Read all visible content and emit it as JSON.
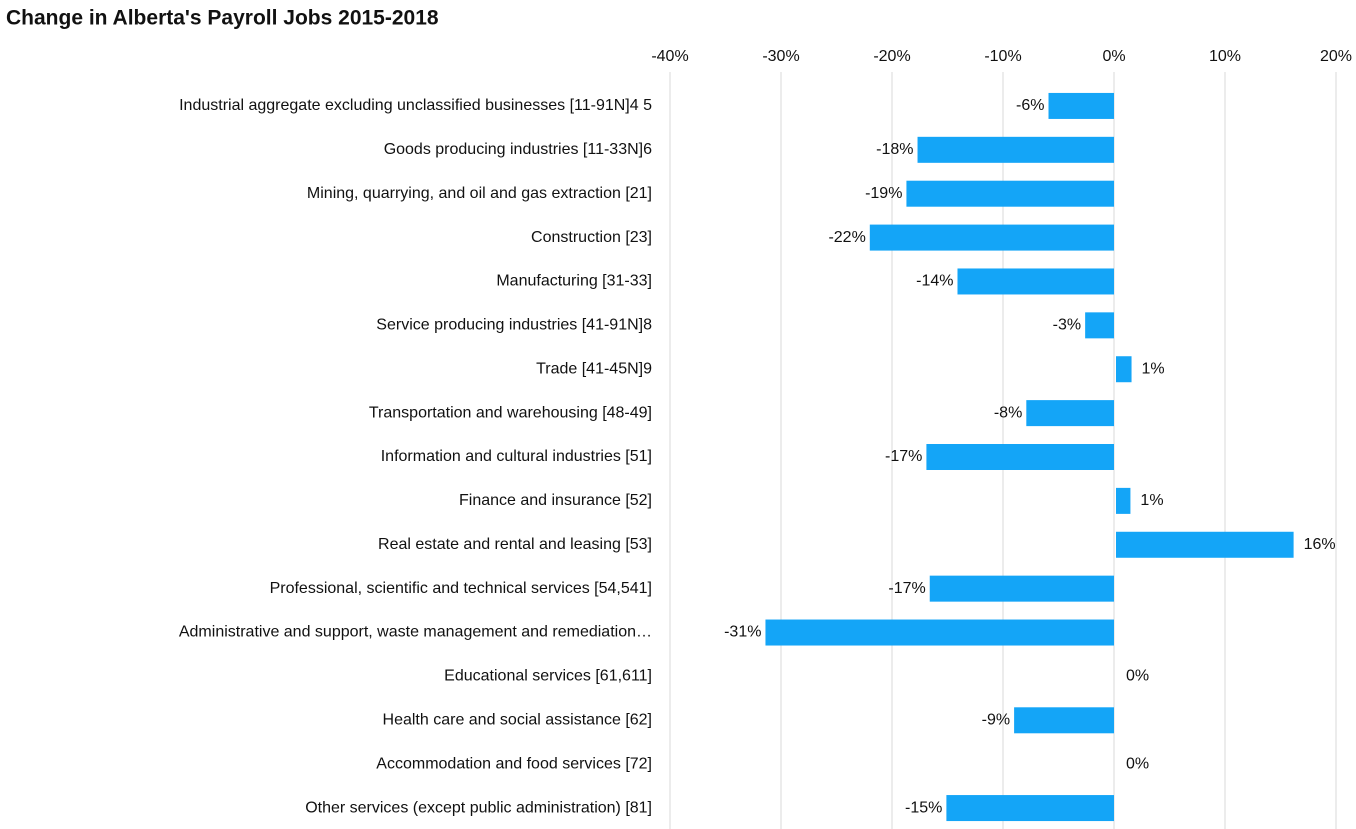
{
  "chart_data": {
    "type": "barh",
    "title": "Change in Alberta's Payroll Jobs 2015-2018",
    "categories": [
      "Industrial aggregate excluding unclassified businesses [11-91N]4 5",
      "Goods producing industries [11-33N]6",
      "Mining, quarrying, and oil and gas extraction [21]",
      "Construction [23]",
      "Manufacturing [31-33]",
      "Service producing industries [41-91N]8",
      "Trade [41-45N]9",
      "Transportation and warehousing [48-49]",
      "Information and cultural industries [51]",
      "Finance and insurance [52]",
      "Real estate and rental and leasing [53]",
      "Professional, scientific and technical services [54,541]",
      "Administrative and support, waste management and remediation…",
      "Educational services [61,611]",
      "Health care and social assistance [62]",
      "Accommodation and food services [72]",
      "Other services (except public administration) [81]"
    ],
    "values": [
      -5.9,
      -17.7,
      -18.7,
      -22.0,
      -14.1,
      -2.6,
      1.4,
      -7.9,
      -16.9,
      1.3,
      16.0,
      -16.6,
      -31.4,
      0,
      -9.0,
      0,
      -15.1
    ],
    "value_labels": [
      "-6%",
      "-18%",
      "-19%",
      "-22%",
      "-14%",
      "-3%",
      "1%",
      "-8%",
      "-17%",
      "1%",
      "16%",
      "-17%",
      "-31%",
      "0%",
      "-9%",
      "0%",
      "-15%"
    ],
    "color": "#14a5f7",
    "xlim": [
      -40,
      20
    ],
    "xticks": [
      {
        "value": -40,
        "label": "-40%"
      },
      {
        "value": -30,
        "label": "-30%"
      },
      {
        "value": -20,
        "label": "-20%"
      },
      {
        "value": -10,
        "label": "-10%"
      },
      {
        "value": 0,
        "label": "0%"
      },
      {
        "value": 10,
        "label": "10%"
      },
      {
        "value": 20,
        "label": "20%"
      }
    ],
    "grid": true
  }
}
